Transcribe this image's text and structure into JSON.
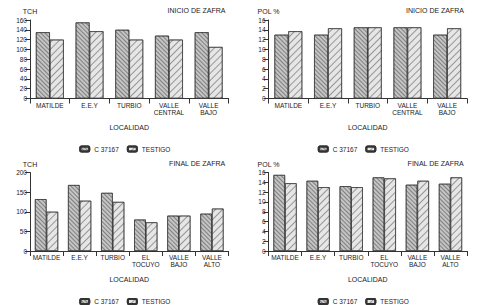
{
  "chart_data": [
    {
      "type": "bar",
      "title": "INICIO DE ZAFRA",
      "ylabel": "TCH",
      "xlabel": "LOCALIDAD",
      "categories": [
        "MATILDE",
        "E.E.Y",
        "TURBIO",
        "VALLE CENTRAL",
        "VALLE BAJO"
      ],
      "series": [
        {
          "name": "C 37167",
          "color": "#c4c4c4",
          "values": [
            135,
            155,
            140,
            128,
            135
          ]
        },
        {
          "name": "TESTIGO",
          "color": "#e6e6e6",
          "values": [
            120,
            137,
            120,
            120,
            105
          ]
        }
      ],
      "ylim": [
        0,
        160
      ],
      "yticks": [
        0,
        20,
        40,
        60,
        80,
        100,
        120,
        140,
        160
      ],
      "grid": false,
      "legend": "bottom"
    },
    {
      "type": "bar",
      "title": "INICIO DE ZAFRA",
      "ylabel": "POL %",
      "xlabel": "LOCALIDAD",
      "categories": [
        "MATILDE",
        "E.E.Y",
        "TURBIO",
        "VALLE CENTRAL",
        "VALLE BAJO"
      ],
      "series": [
        {
          "name": "C 37167",
          "color": "#c4c4c4",
          "values": [
            13,
            13,
            14.5,
            14.5,
            13
          ]
        },
        {
          "name": "TESTIGO",
          "color": "#e6e6e6",
          "values": [
            13.7,
            14.3,
            14.5,
            14.5,
            14.3
          ]
        }
      ],
      "ylim": [
        0,
        16
      ],
      "yticks": [
        0,
        2,
        4,
        6,
        8,
        10,
        12,
        14,
        16
      ],
      "grid": false,
      "legend": "bottom"
    },
    {
      "type": "bar",
      "title": "FINAL DE ZAFRA",
      "ylabel": "TCH",
      "xlabel": "LOCALIDAD",
      "categories": [
        "MATILDE",
        "E.E.Y",
        "TURBIO",
        "EL TOCUYO",
        "VALLE BAJO",
        "VALLE ALTO"
      ],
      "series": [
        {
          "name": "C 37167",
          "color": "#c4c4c4",
          "values": [
            132,
            168,
            148,
            80,
            90,
            95
          ]
        },
        {
          "name": "TESTIGO",
          "color": "#e6e6e6",
          "values": [
            100,
            128,
            125,
            73,
            90,
            108
          ]
        }
      ],
      "ylim": [
        0,
        200
      ],
      "yticks": [
        0,
        50,
        100,
        150,
        200
      ],
      "grid": false,
      "legend": "bottom"
    },
    {
      "type": "bar",
      "title": "FINAL DE ZAFRA",
      "ylabel": "POL %",
      "xlabel": "LOCALIDAD",
      "categories": [
        "MATILDE",
        "E.E.Y",
        "TURBIO",
        "EL TOCUYO",
        "VALLE BAJO",
        "VALLE ALTO"
      ],
      "series": [
        {
          "name": "C 37167",
          "color": "#c4c4c4",
          "values": [
            15.5,
            14.3,
            13.2,
            15,
            13.5,
            13.7
          ]
        },
        {
          "name": "TESTIGO",
          "color": "#e6e6e6",
          "values": [
            13.8,
            13,
            13,
            14.8,
            14.3,
            15
          ]
        }
      ],
      "ylim": [
        0,
        16
      ],
      "yticks": [
        0,
        2,
        4,
        6,
        8,
        10,
        12,
        14,
        16
      ],
      "grid": false,
      "legend": "bottom"
    }
  ]
}
